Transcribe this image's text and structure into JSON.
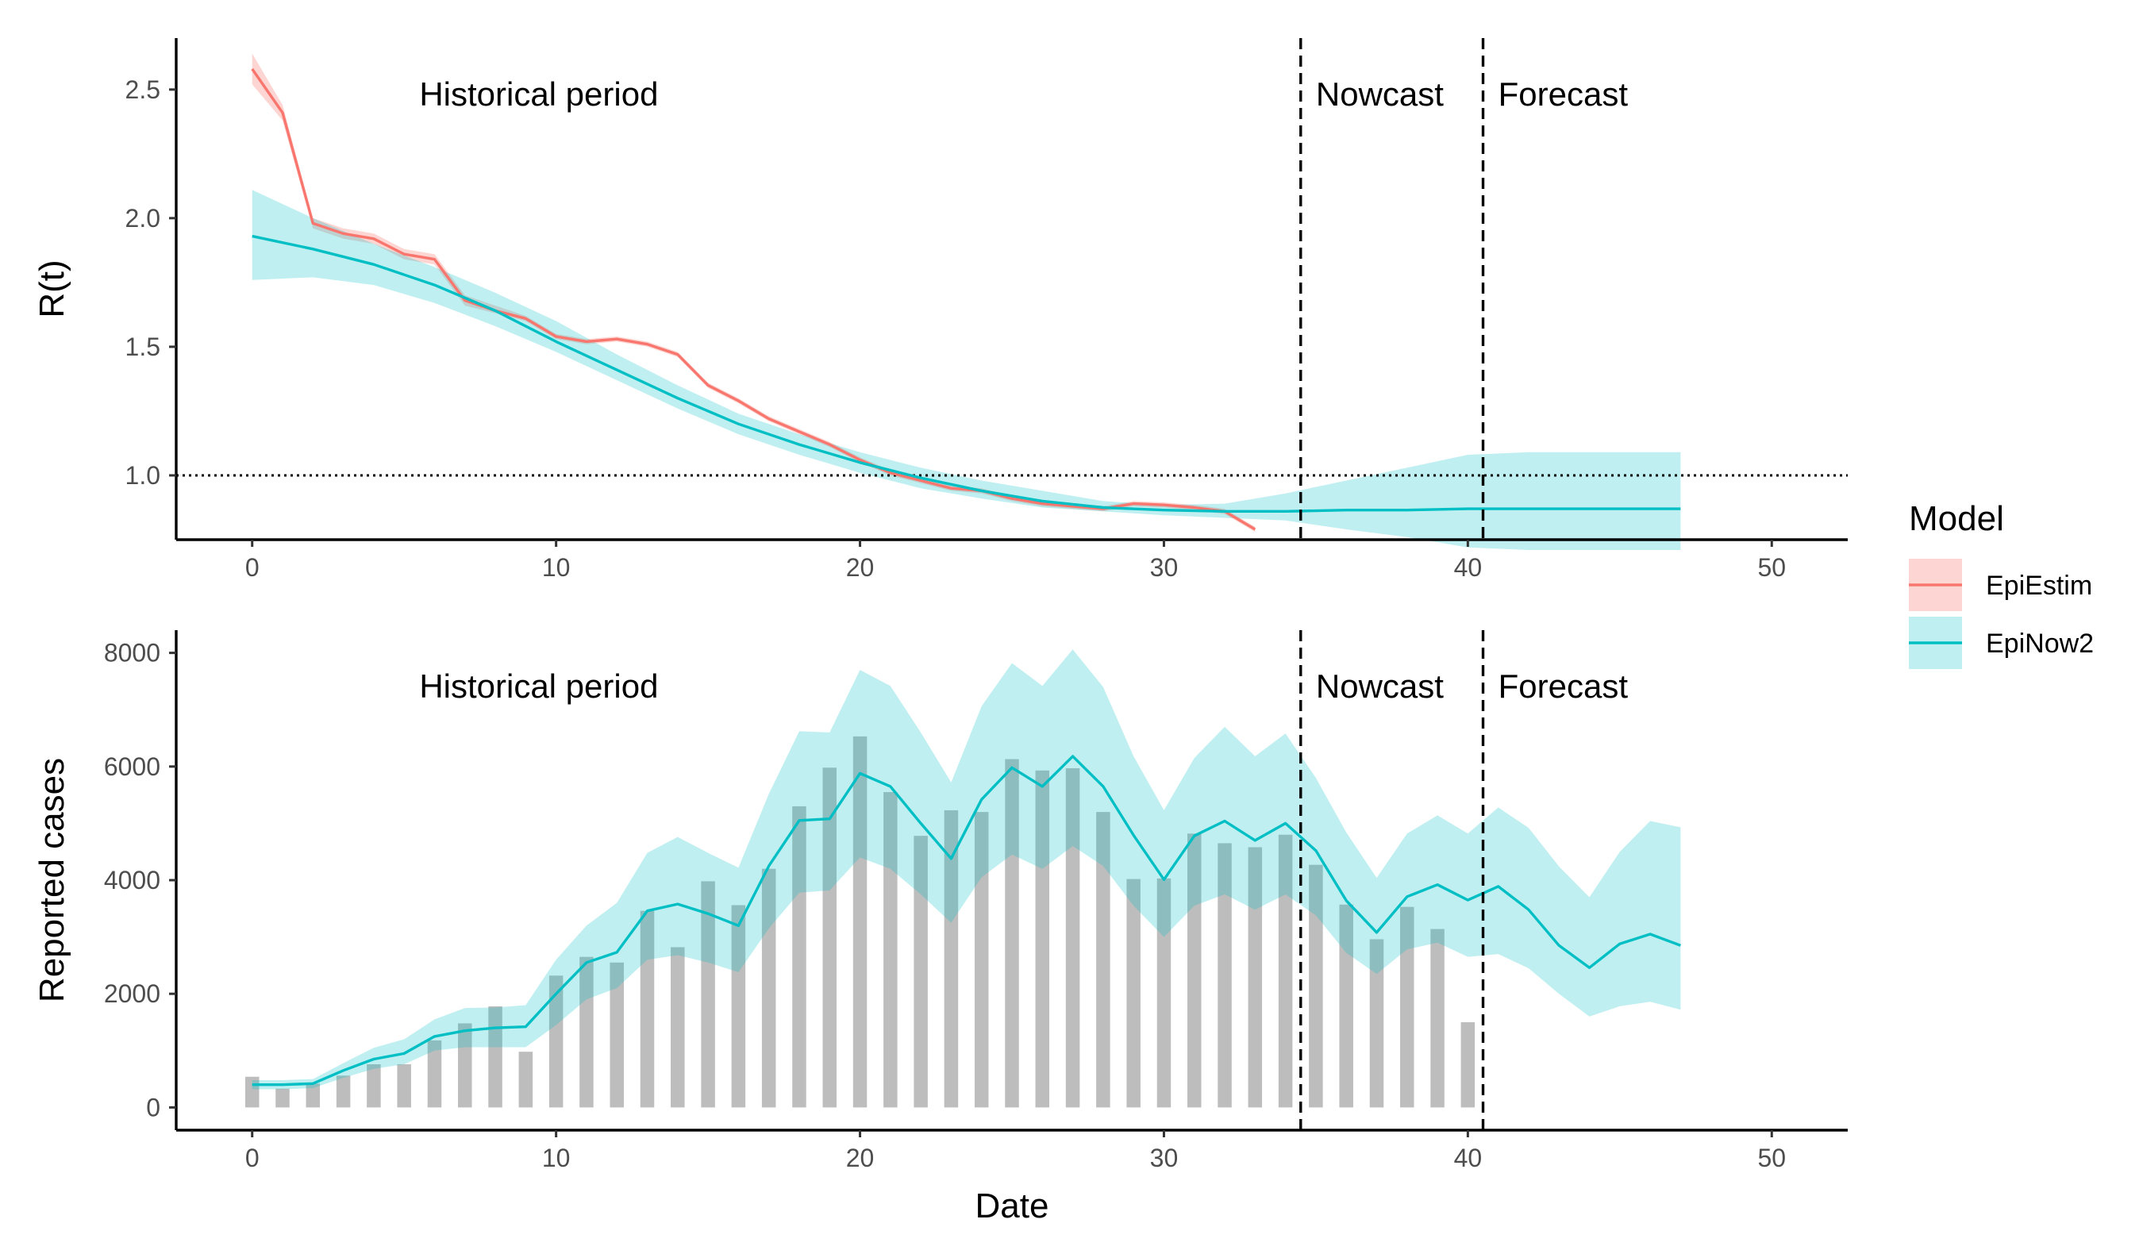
{
  "chart_data": [
    {
      "type": "line",
      "panel": "top",
      "ylabel": "R(t)",
      "xlabel": "",
      "xlim": [
        -2.5,
        52.5
      ],
      "ylim": [
        0.75,
        2.7
      ],
      "x_ticks": [
        0,
        10,
        20,
        30,
        40,
        50
      ],
      "y_ticks": [
        1.0,
        1.5,
        2.0,
        2.5
      ],
      "y_tick_labels": [
        "1.0",
        "1.5",
        "2.0",
        "2.5"
      ],
      "reference_line": {
        "y": 1.0,
        "style": "dotted"
      },
      "period_boundaries": [
        34.5,
        40.5
      ],
      "period_labels": [
        {
          "text": "Historical period",
          "x_start": 5.5
        },
        {
          "text": "Nowcast",
          "x_start": 35.0
        },
        {
          "text": "Forecast",
          "x_start": 41.0
        }
      ],
      "series": [
        {
          "name": "EpiEstim",
          "color": "#F8766D",
          "x": [
            0,
            1,
            2,
            3,
            4,
            5,
            6,
            7,
            8,
            9,
            10,
            11,
            12,
            13,
            14,
            15,
            16,
            17,
            18,
            19,
            20,
            21,
            22,
            23,
            24,
            25,
            26,
            27,
            28,
            29,
            30,
            31,
            32,
            33
          ],
          "values": [
            2.58,
            2.41,
            1.98,
            1.94,
            1.92,
            1.86,
            1.84,
            1.68,
            1.64,
            1.61,
            1.54,
            1.52,
            1.53,
            1.51,
            1.47,
            1.35,
            1.29,
            1.22,
            1.17,
            1.12,
            1.06,
            1.01,
            0.98,
            0.95,
            0.94,
            0.91,
            0.89,
            0.88,
            0.87,
            0.89,
            0.885,
            0.875,
            0.86,
            0.79
          ],
          "lower": [
            2.52,
            2.38,
            1.96,
            1.92,
            1.9,
            1.84,
            1.82,
            1.66,
            1.63,
            1.6,
            1.53,
            1.51,
            1.52,
            1.5,
            1.46,
            1.34,
            1.28,
            1.21,
            1.16,
            1.11,
            1.05,
            1.0,
            0.97,
            0.94,
            0.93,
            0.9,
            0.88,
            0.87,
            0.86,
            0.88,
            0.875,
            0.865,
            0.85,
            0.78
          ],
          "upper": [
            2.64,
            2.44,
            2.0,
            1.96,
            1.94,
            1.88,
            1.86,
            1.7,
            1.66,
            1.62,
            1.55,
            1.53,
            1.54,
            1.52,
            1.48,
            1.36,
            1.3,
            1.23,
            1.18,
            1.13,
            1.07,
            1.02,
            0.99,
            0.96,
            0.95,
            0.92,
            0.9,
            0.89,
            0.88,
            0.9,
            0.895,
            0.885,
            0.87,
            0.8
          ]
        },
        {
          "name": "EpiNow2",
          "color": "#00BFC4",
          "x": [
            0,
            2,
            4,
            6,
            8,
            10,
            12,
            14,
            16,
            18,
            20,
            22,
            24,
            26,
            28,
            30,
            32,
            34,
            36,
            38,
            40,
            42,
            44,
            46,
            47
          ],
          "values": [
            1.93,
            1.88,
            1.82,
            1.74,
            1.64,
            1.52,
            1.41,
            1.3,
            1.2,
            1.12,
            1.05,
            0.99,
            0.94,
            0.9,
            0.875,
            0.865,
            0.86,
            0.86,
            0.865,
            0.865,
            0.87,
            0.87,
            0.87,
            0.87,
            0.87
          ],
          "lower": [
            1.76,
            1.77,
            1.74,
            1.67,
            1.58,
            1.48,
            1.37,
            1.26,
            1.16,
            1.08,
            1.01,
            0.95,
            0.91,
            0.875,
            0.86,
            0.845,
            0.835,
            0.825,
            0.79,
            0.76,
            0.72,
            0.71,
            0.71,
            0.71,
            0.71
          ],
          "upper": [
            2.11,
            2.0,
            1.9,
            1.81,
            1.71,
            1.6,
            1.47,
            1.35,
            1.24,
            1.16,
            1.09,
            1.03,
            0.98,
            0.94,
            0.9,
            0.885,
            0.89,
            0.93,
            0.98,
            1.03,
            1.08,
            1.09,
            1.09,
            1.09,
            1.09
          ]
        }
      ]
    },
    {
      "type": "bar",
      "panel": "bottom",
      "xlabel": "Date",
      "ylabel": "Reported cases",
      "xlim": [
        -2.5,
        52.5
      ],
      "ylim": [
        -400,
        8400
      ],
      "x_ticks": [
        0,
        10,
        20,
        30,
        40,
        50
      ],
      "y_ticks": [
        0,
        2000,
        4000,
        6000,
        8000
      ],
      "period_boundaries": [
        34.5,
        40.5
      ],
      "period_labels": [
        {
          "text": "Historical period",
          "x_start": 5.5
        },
        {
          "text": "Nowcast",
          "x_start": 35.0
        },
        {
          "text": "Forecast",
          "x_start": 41.0
        }
      ],
      "bars": {
        "color": "#bdbdbd",
        "x": [
          0,
          1,
          2,
          3,
          4,
          5,
          6,
          7,
          8,
          9,
          10,
          11,
          12,
          13,
          14,
          15,
          16,
          17,
          18,
          19,
          20,
          21,
          22,
          23,
          24,
          25,
          26,
          27,
          28,
          29,
          30,
          31,
          32,
          33,
          34,
          35,
          36,
          37,
          38,
          39,
          40
        ],
        "values": [
          540,
          330,
          420,
          560,
          760,
          760,
          1180,
          1480,
          1780,
          980,
          2320,
          2650,
          2550,
          3460,
          2820,
          3980,
          3560,
          4200,
          5300,
          5980,
          6530,
          5550,
          4780,
          5230,
          5200,
          6130,
          5930,
          5970,
          5200,
          4020,
          4030,
          4820,
          4650,
          4580,
          4800,
          4270,
          3570,
          2960,
          3530,
          3140,
          1500
        ]
      },
      "series": [
        {
          "name": "EpiNow2",
          "color": "#00BFC4",
          "x": [
            0,
            1,
            2,
            3,
            4,
            5,
            6,
            7,
            8,
            9,
            10,
            11,
            12,
            13,
            14,
            15,
            16,
            17,
            18,
            19,
            20,
            21,
            22,
            23,
            24,
            25,
            26,
            27,
            28,
            29,
            30,
            31,
            32,
            33,
            34,
            35,
            36,
            37,
            38,
            39,
            40,
            41,
            42,
            43,
            44,
            45,
            46,
            47
          ],
          "values": [
            400,
            400,
            420,
            650,
            850,
            950,
            1250,
            1350,
            1400,
            1420,
            2000,
            2550,
            2730,
            3460,
            3580,
            3410,
            3200,
            4250,
            5050,
            5080,
            5880,
            5650,
            5000,
            4380,
            5420,
            5980,
            5650,
            6180,
            5650,
            4790,
            4010,
            4780,
            5040,
            4700,
            5000,
            4520,
            3640,
            3080,
            3710,
            3920,
            3650,
            3890,
            3480,
            2850,
            2460,
            2880,
            3050,
            2850
          ],
          "lower": [
            320,
            320,
            340,
            520,
            680,
            760,
            1000,
            1060,
            1060,
            1060,
            1450,
            1900,
            2100,
            2600,
            2680,
            2550,
            2380,
            3150,
            3780,
            3820,
            4400,
            4200,
            3750,
            3250,
            4050,
            4450,
            4200,
            4600,
            4250,
            3550,
            3000,
            3550,
            3750,
            3480,
            3750,
            3380,
            2720,
            2350,
            2780,
            2900,
            2650,
            2700,
            2450,
            2000,
            1600,
            1780,
            1860,
            1720
          ],
          "upper": [
            480,
            480,
            500,
            780,
            1050,
            1200,
            1550,
            1750,
            1760,
            1800,
            2600,
            3200,
            3600,
            4480,
            4760,
            4480,
            4220,
            5520,
            6620,
            6600,
            7700,
            7420,
            6600,
            5720,
            7060,
            7820,
            7420,
            8060,
            7400,
            6180,
            5230,
            6150,
            6700,
            6180,
            6580,
            5800,
            4840,
            4040,
            4820,
            5140,
            4820,
            5280,
            4920,
            4240,
            3700,
            4500,
            5040,
            4930
          ]
        }
      ]
    }
  ],
  "legend": {
    "title": "Model",
    "items": [
      {
        "label": "EpiEstim",
        "color": "#F8766D"
      },
      {
        "label": "EpiNow2",
        "color": "#00BFC4"
      }
    ]
  }
}
